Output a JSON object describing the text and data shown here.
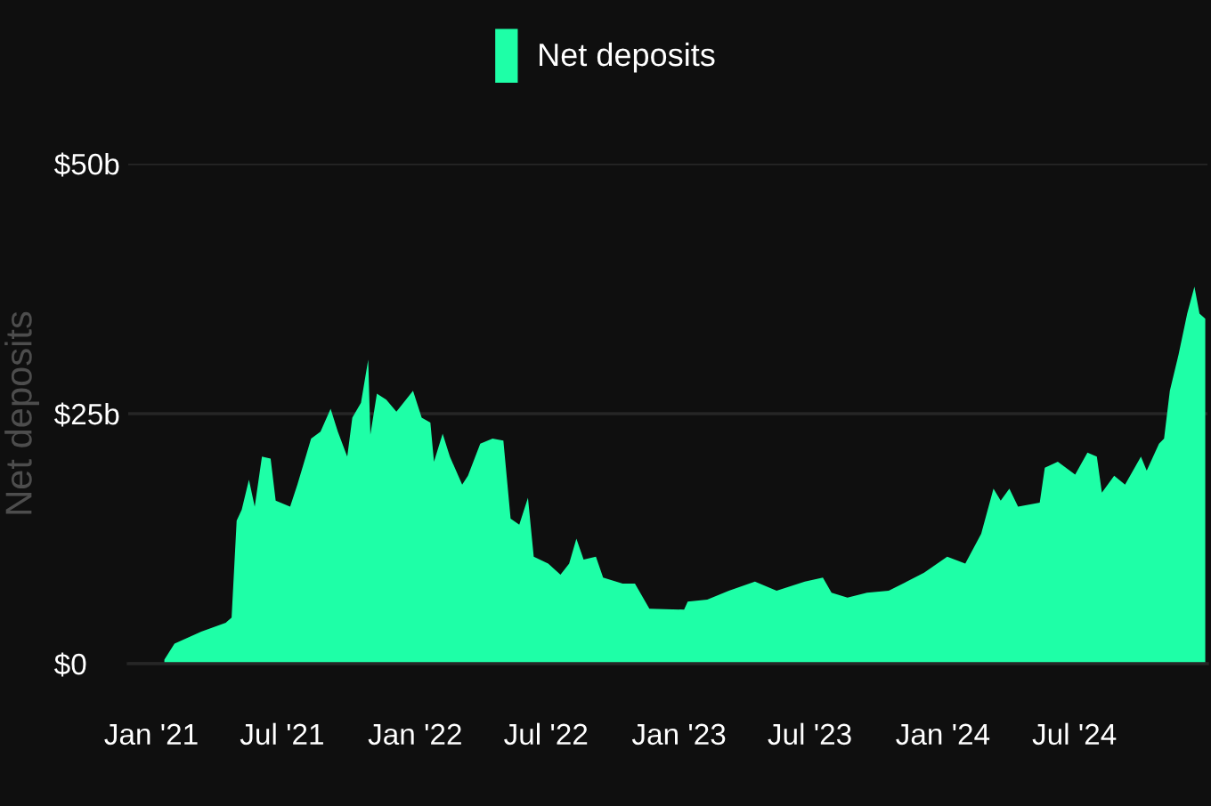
{
  "chart_data": {
    "type": "area",
    "ylabel": "Net deposits",
    "x": [
      "2021-01-19",
      "2021-02-02",
      "2021-03-11",
      "2021-04-14",
      "2021-04-22",
      "2021-04-29",
      "2021-05-06",
      "2021-05-16",
      "2021-05-24",
      "2021-06-03",
      "2021-06-15",
      "2021-06-22",
      "2021-07-12",
      "2021-07-22",
      "2021-08-10",
      "2021-08-23",
      "2021-09-06",
      "2021-09-16",
      "2021-09-29",
      "2021-10-06",
      "2021-10-18",
      "2021-10-28",
      "2021-10-31",
      "2021-11-09",
      "2021-11-22",
      "2021-12-06",
      "2021-12-29",
      "2022-01-10",
      "2022-01-22",
      "2022-01-27",
      "2022-02-08",
      "2022-02-18",
      "2022-03-07",
      "2022-03-15",
      "2022-04-01",
      "2022-04-18",
      "2022-05-03",
      "2022-05-13",
      "2022-05-25",
      "2022-06-06",
      "2022-06-14",
      "2022-07-04",
      "2022-07-21",
      "2022-08-02",
      "2022-08-12",
      "2022-08-22",
      "2022-09-08",
      "2022-09-18",
      "2022-10-15",
      "2022-11-01",
      "2022-11-21",
      "2023-01-08",
      "2023-01-13",
      "2023-02-09",
      "2023-03-11",
      "2023-04-16",
      "2023-05-16",
      "2023-06-24",
      "2023-07-19",
      "2023-07-31",
      "2023-08-22",
      "2023-09-18",
      "2023-10-18",
      "2023-11-12",
      "2023-12-06",
      "2024-01-07",
      "2024-02-01",
      "2024-02-23",
      "2024-03-11",
      "2024-03-21",
      "2024-04-02",
      "2024-04-14",
      "2024-05-14",
      "2024-05-21",
      "2024-06-08",
      "2024-07-02",
      "2024-07-19",
      "2024-08-01",
      "2024-08-08",
      "2024-08-25",
      "2024-09-09",
      "2024-10-01",
      "2024-10-09",
      "2024-10-26",
      "2024-11-02",
      "2024-11-10",
      "2024-11-22",
      "2024-12-04",
      "2024-12-14",
      "2024-12-21",
      "2024-12-29"
    ],
    "series": [
      {
        "name": "Net deposits",
        "color": "#1effa7",
        "values": [
          0.4,
          2.0,
          3.2,
          4.1,
          4.6,
          14.3,
          15.4,
          18.4,
          15.7,
          20.7,
          20.5,
          16.3,
          15.7,
          17.9,
          22.5,
          23.2,
          25.5,
          23.2,
          20.7,
          24.6,
          26.1,
          30.4,
          22.9,
          27.0,
          26.4,
          25.2,
          27.3,
          24.6,
          24.1,
          20.2,
          23.0,
          20.7,
          17.9,
          18.8,
          22.0,
          22.5,
          22.3,
          14.5,
          13.9,
          16.6,
          10.7,
          10.0,
          8.9,
          10.0,
          12.5,
          10.4,
          10.7,
          8.6,
          8.0,
          8.0,
          5.5,
          5.4,
          6.2,
          6.4,
          7.3,
          8.2,
          7.3,
          8.2,
          8.6,
          7.1,
          6.6,
          7.1,
          7.3,
          8.2,
          9.1,
          10.7,
          10.0,
          13.0,
          17.5,
          16.3,
          17.5,
          15.7,
          16.1,
          19.6,
          20.2,
          18.9,
          21.1,
          20.7,
          17.1,
          18.8,
          17.9,
          20.7,
          19.3,
          22.0,
          22.5,
          27.3,
          30.9,
          35.0,
          37.7,
          35.0,
          34.5
        ]
      }
    ],
    "xlim": [
      "2020-11-30",
      "2025-01-01"
    ],
    "xticks": [
      {
        "value": "2021-01-01",
        "label": "Jan '21"
      },
      {
        "value": "2021-07-01",
        "label": "Jul '21"
      },
      {
        "value": "2022-01-01",
        "label": "Jan '22"
      },
      {
        "value": "2022-07-01",
        "label": "Jul '22"
      },
      {
        "value": "2023-01-01",
        "label": "Jan '23"
      },
      {
        "value": "2023-07-01",
        "label": "Jul '23"
      },
      {
        "value": "2024-01-01",
        "label": "Jan '24"
      },
      {
        "value": "2024-07-01",
        "label": "Jul '24"
      }
    ],
    "ylim": [
      0,
      50
    ],
    "yticks": [
      {
        "value": 0,
        "label": "$0"
      },
      {
        "value": 25,
        "label": "$25b"
      },
      {
        "value": 50,
        "label": "$50b"
      }
    ],
    "grid": "y",
    "legend": "top"
  }
}
